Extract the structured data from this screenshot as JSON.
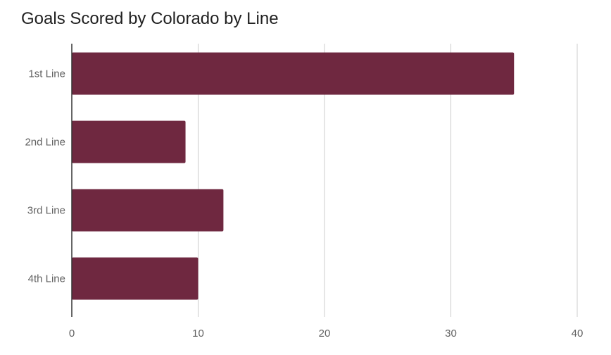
{
  "chart_data": {
    "type": "bar",
    "orientation": "horizontal",
    "title": "Goals Scored by Colorado by Line",
    "categories": [
      "1st Line",
      "2nd Line",
      "3rd Line",
      "4th Line"
    ],
    "values": [
      35,
      9,
      12,
      10
    ],
    "xlim": [
      0,
      40
    ],
    "xticks": [
      "0",
      "10",
      "20",
      "30",
      "40"
    ],
    "grid": true,
    "legend": "none",
    "bar_color": "#6f2840"
  }
}
